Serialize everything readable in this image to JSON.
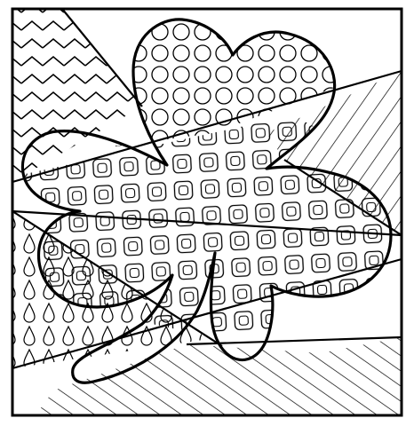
{
  "artwork": {
    "subject": "shamrock",
    "style": "pop-art coloring page",
    "line_color": "#000000",
    "paper_color": "#ffffff",
    "background_patterns": [
      "zigzag",
      "diagonal-stripes",
      "raindrops",
      "diagonal-stripes"
    ],
    "leaf_patterns": [
      "circles",
      "rounded-squares"
    ]
  }
}
